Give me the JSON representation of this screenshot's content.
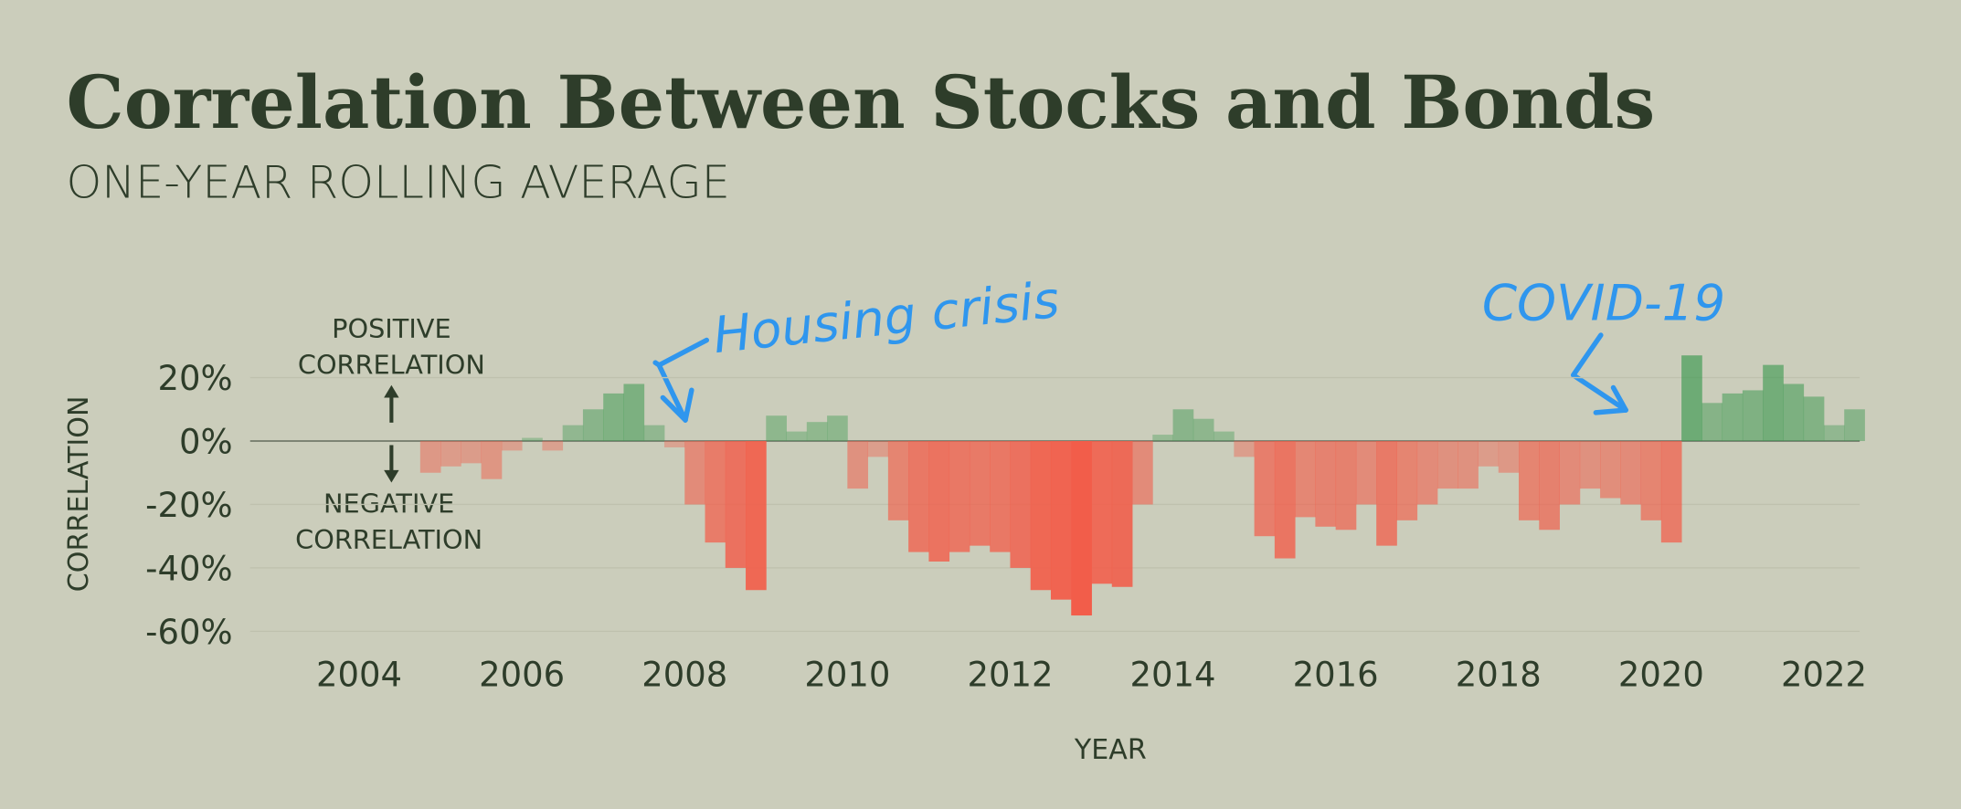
{
  "chart_data": {
    "type": "bar",
    "title": "Correlation Between Stocks and Bonds",
    "subtitle": "ONE-YEAR ROLLING AVERAGE",
    "x_label": "YEAR",
    "y_label": "CORRELATION",
    "positive_label": [
      "POSITIVE",
      "CORRELATION"
    ],
    "negative_label": [
      "NEGATIVE",
      "CORRELATION"
    ],
    "annotations": [
      "Housing crisis",
      "COVID-19"
    ],
    "positive_color": "#3f9a52",
    "negative_color": "#f25d4a",
    "x": [
      2004.75,
      2005,
      2005.25,
      2005.5,
      2005.75,
      2006,
      2006.25,
      2006.5,
      2006.75,
      2007,
      2007.25,
      2007.5,
      2007.75,
      2008,
      2008.25,
      2008.5,
      2008.75,
      2009,
      2009.25,
      2009.5,
      2009.75,
      2010,
      2010.25,
      2010.5,
      2010.75,
      2011,
      2011.25,
      2011.5,
      2011.75,
      2012,
      2012.25,
      2012.5,
      2012.75,
      2013,
      2013.25,
      2013.5,
      2013.75,
      2014,
      2014.25,
      2014.5,
      2014.75,
      2015,
      2015.25,
      2015.5,
      2015.75,
      2016,
      2016.25,
      2016.5,
      2016.75,
      2017,
      2017.25,
      2017.5,
      2017.75,
      2018,
      2018.25,
      2018.5,
      2018.75,
      2019,
      2019.25,
      2019.5,
      2019.75,
      2020,
      2020.25,
      2020.5,
      2020.75,
      2021,
      2021.25,
      2021.5,
      2021.75,
      2022,
      2022.25
    ],
    "values": [
      -10,
      -8,
      -7,
      -12,
      -3,
      1,
      -3,
      5,
      10,
      15,
      18,
      5,
      -2,
      -20,
      -32,
      -40,
      -47,
      8,
      3,
      6,
      8,
      -15,
      -5,
      -25,
      -35,
      -38,
      -35,
      -33,
      -35,
      -40,
      -47,
      -50,
      -55,
      -45,
      -46,
      -20,
      2,
      10,
      7,
      3,
      -5,
      -30,
      -37,
      -24,
      -27,
      -28,
      -20,
      -33,
      -25,
      -20,
      -15,
      -15,
      -8,
      -10,
      -25,
      -28,
      -20,
      -15,
      -18,
      -20,
      -25,
      -32,
      27,
      12,
      15,
      16,
      24,
      18,
      14,
      5,
      10
    ],
    "xlim": [
      2002.66,
      2022.44
    ],
    "xticks": [
      2004,
      2006,
      2008,
      2010,
      2012,
      2014,
      2016,
      2018,
      2020,
      2022
    ],
    "ylim": [
      -60,
      30
    ],
    "yticks": [
      {
        "value": -60,
        "label": "-60%"
      },
      {
        "value": -40,
        "label": "-40%"
      },
      {
        "value": -20,
        "label": "-20%"
      },
      {
        "value": 0,
        "label": "0%"
      },
      {
        "value": 20,
        "label": "20%"
      }
    ],
    "grid": true
  }
}
